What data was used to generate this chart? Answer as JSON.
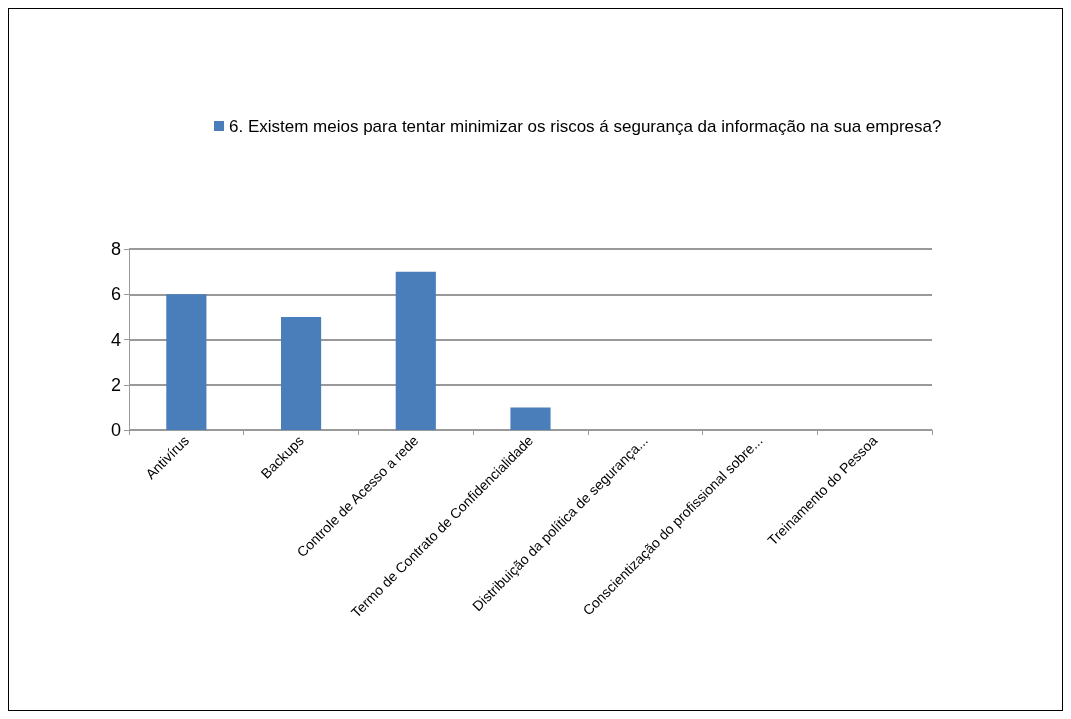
{
  "chart_data": {
    "type": "bar",
    "categories": [
      "Antivírus",
      "Backups",
      "Controle de Acesso a rede",
      "Termo de Contrato de Confidencialidade",
      "Distribuição da política de segurança...",
      "Conscientização do profissional sobre...",
      "Treinamento do Pessoa"
    ],
    "series": [
      {
        "name": "6. Existem meios para tentar minimizar os riscos á segurança da informação na sua empresa?",
        "color": "#4a7ebb",
        "values": [
          6,
          5,
          7,
          1,
          0,
          0,
          0
        ]
      }
    ],
    "ylim": [
      0,
      8
    ],
    "yticks": [
      0,
      2,
      4,
      6,
      8
    ],
    "grid": "y",
    "legend": "top"
  }
}
